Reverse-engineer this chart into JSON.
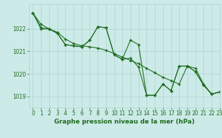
{
  "background_color": "#cceae7",
  "grid_color": "#add4d0",
  "line_color": "#1e6b1e",
  "title": "Graphe pression niveau de la mer (hPa)",
  "xlim": [
    -0.5,
    23
  ],
  "ylim": [
    1018.5,
    1023.1
  ],
  "yticks": [
    1019,
    1020,
    1021,
    1022
  ],
  "xticks": [
    0,
    1,
    2,
    3,
    4,
    5,
    6,
    7,
    8,
    9,
    10,
    11,
    12,
    13,
    14,
    15,
    16,
    17,
    18,
    19,
    20,
    21,
    22,
    23
  ],
  "series1_x": [
    0,
    1,
    2,
    3,
    4,
    5,
    6,
    7,
    8,
    9,
    10,
    11,
    12,
    13,
    14,
    15,
    16,
    17,
    18,
    19,
    20,
    21,
    22,
    23
  ],
  "series1_y": [
    1022.7,
    1022.2,
    1022.0,
    1021.85,
    1021.55,
    1021.35,
    1021.25,
    1021.2,
    1021.15,
    1021.05,
    1020.9,
    1020.75,
    1020.6,
    1020.45,
    1020.25,
    1020.05,
    1019.85,
    1019.7,
    1019.55,
    1020.35,
    1020.25,
    1019.55,
    1019.1,
    1019.2
  ],
  "series2_x": [
    0,
    1,
    2,
    3,
    4,
    5,
    6,
    7,
    8,
    9,
    10,
    11,
    12,
    13,
    14,
    15,
    16,
    17,
    18,
    19,
    20,
    21,
    22,
    23
  ],
  "series2_y": [
    1022.7,
    1022.0,
    1022.0,
    1021.8,
    1021.3,
    1021.25,
    1021.2,
    1021.5,
    1022.1,
    1022.05,
    1020.85,
    1020.65,
    1020.7,
    1020.3,
    1019.05,
    1019.05,
    1019.55,
    1019.25,
    1020.35,
    1020.35,
    1020.1,
    1019.5,
    1019.1,
    1019.2
  ],
  "series3_x": [
    0,
    1,
    2,
    3,
    4,
    5,
    6,
    7,
    8,
    9,
    10,
    11,
    12,
    13,
    14,
    15,
    16,
    17,
    18,
    19,
    20,
    21,
    22,
    23
  ],
  "series3_y": [
    1022.7,
    1022.05,
    1022.0,
    1021.8,
    1021.3,
    1021.25,
    1021.2,
    1021.5,
    1022.1,
    1022.05,
    1020.85,
    1020.65,
    1021.5,
    1021.3,
    1019.05,
    1019.05,
    1019.55,
    1019.25,
    1020.35,
    1020.35,
    1020.1,
    1019.5,
    1019.1,
    1019.2
  ],
  "tick_fontsize": 5.5,
  "title_fontsize": 6.5
}
